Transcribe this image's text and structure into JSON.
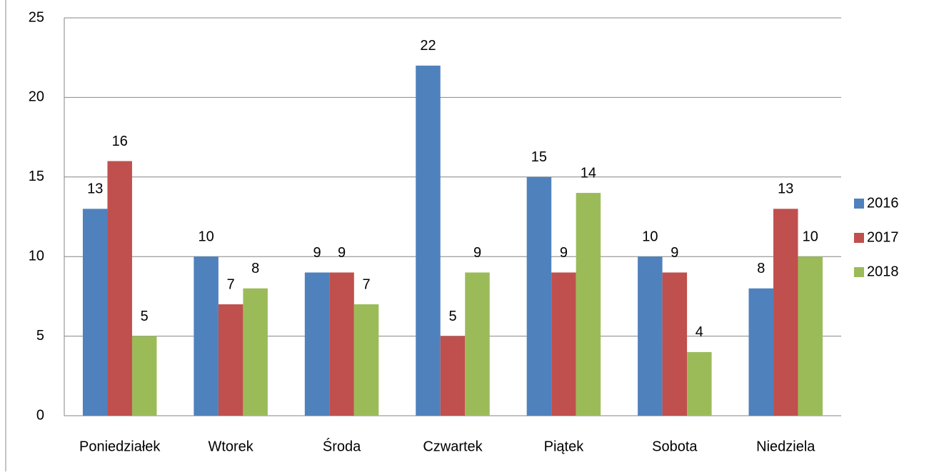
{
  "chart_data": {
    "type": "bar",
    "categories": [
      "Poniedziałek",
      "Wtorek",
      "Środa",
      "Czwartek",
      "Piątek",
      "Sobota",
      "Niedziela"
    ],
    "series": [
      {
        "name": "2016",
        "color": "#4f81bd",
        "values": [
          13,
          10,
          9,
          22,
          15,
          10,
          8
        ]
      },
      {
        "name": "2017",
        "color": "#c0504d",
        "values": [
          16,
          7,
          9,
          5,
          9,
          9,
          13
        ]
      },
      {
        "name": "2018",
        "color": "#9bbb59",
        "values": [
          5,
          8,
          7,
          9,
          14,
          4,
          10
        ]
      }
    ],
    "ylim": [
      0,
      25
    ],
    "yticks": [
      0,
      5,
      10,
      15,
      20,
      25
    ],
    "grid": true,
    "legend": "right"
  }
}
